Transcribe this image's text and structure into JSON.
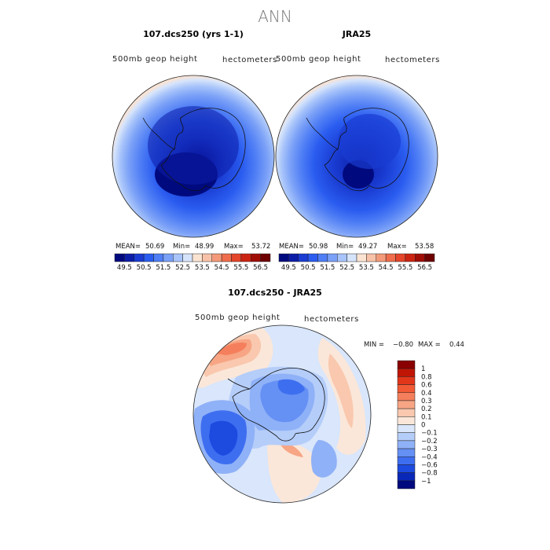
{
  "chart_data": {
    "type": "polar-contour-map",
    "title": "ANN",
    "panels": [
      {
        "id": "model",
        "title": "107.dcs250 (yrs 1-1)",
        "left_label": "500mb  geop  height",
        "right_label": "hectometers",
        "stats": {
          "mean_label": "MEAN=",
          "mean": "50.69",
          "min_label": "Min=",
          "min": "48.99",
          "max_label": "Max=",
          "max": "53.72"
        }
      },
      {
        "id": "obs",
        "title": "JRA25",
        "left_label": "500mb  geop  height",
        "right_label": "hectometers",
        "stats": {
          "mean_label": "MEAN=",
          "mean": "50.98",
          "min_label": "Min=",
          "min": "49.27",
          "max_label": "Max=",
          "max": "53.58"
        }
      },
      {
        "id": "diff",
        "title": "107.dcs250 - JRA25",
        "left_label": "500mb  geop  height",
        "right_label": "hectometers",
        "stats": {
          "min_label": "MIN =",
          "min": "−0.80",
          "max_label": "MAX =",
          "max": "0.44"
        }
      }
    ],
    "top_colorbar": {
      "tick_labels": [
        "49.5",
        "50.5",
        "51.5",
        "52.5",
        "53.5",
        "54.5",
        "55.5",
        "56.5"
      ],
      "colors": [
        "#000a7e",
        "#0c1ea8",
        "#1a3cd2",
        "#2a5cf0",
        "#4f7ef5",
        "#7aa0f7",
        "#a8c4fa",
        "#d6e4fb",
        "#fbe3d2",
        "#f8c2a8",
        "#f49a7a",
        "#ef6d4c",
        "#e5452a",
        "#cc2412",
        "#a00d05",
        "#6e0000"
      ]
    },
    "diff_colorbar": {
      "levels": [
        "1",
        "0.8",
        "0.6",
        "0.4",
        "0.3",
        "0.2",
        "0.1",
        "0",
        "−0.1",
        "−0.2",
        "−0.3",
        "−0.4",
        "−0.6",
        "−0.8",
        "−1"
      ],
      "colors": [
        "#8a0000",
        "#c01505",
        "#e2361b",
        "#f15a35",
        "#f57f5c",
        "#f7a584",
        "#f9c8ae",
        "#fbe7d9",
        "#d9e6fb",
        "#b5cdf9",
        "#8fb1f7",
        "#6590f4",
        "#3e6ef0",
        "#1d4be0",
        "#0a28b8",
        "#000a7e"
      ]
    }
  }
}
